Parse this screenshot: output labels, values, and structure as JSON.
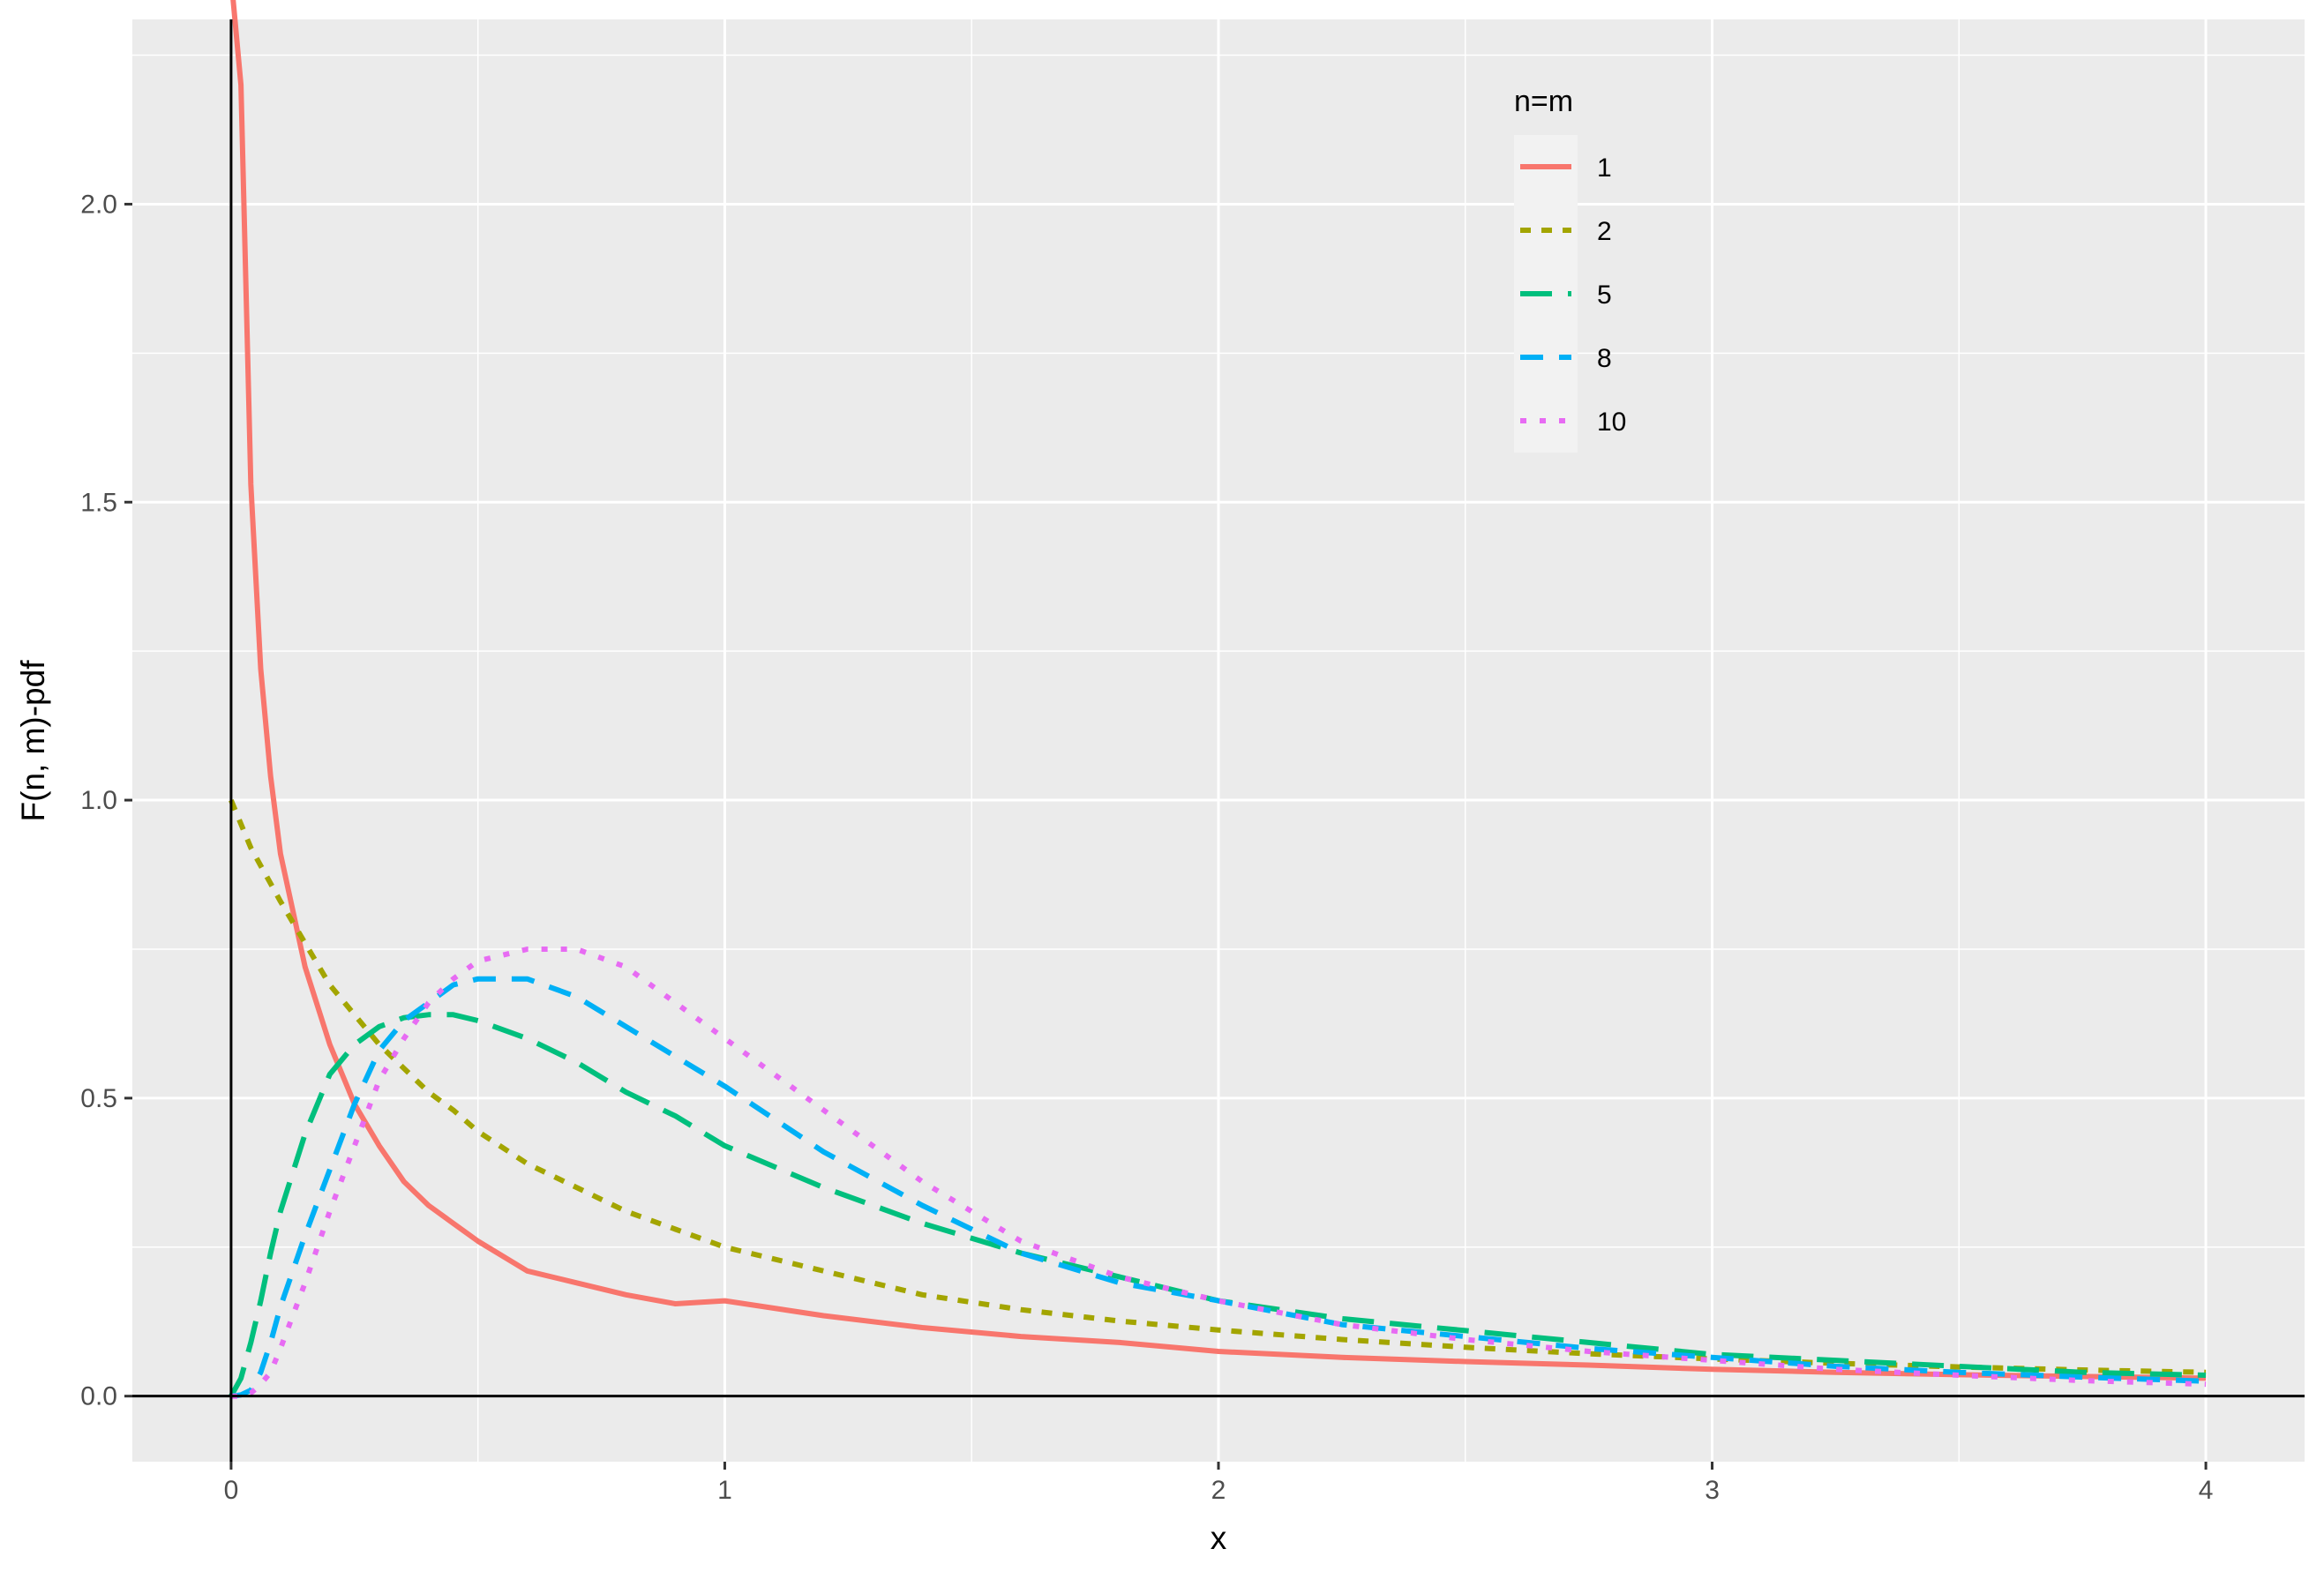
{
  "chart_data": {
    "type": "line",
    "title": "",
    "xlabel": "x",
    "ylabel": "F(n, m)-pdf",
    "xlim": [
      -0.2,
      4.2
    ],
    "ylim": [
      -0.11,
      2.31
    ],
    "x_ticks": [
      0,
      1,
      2,
      3,
      4
    ],
    "x_tick_labels": [
      "0",
      "1",
      "2",
      "3",
      "4"
    ],
    "y_ticks": [
      0,
      0.5,
      1,
      1.5,
      2
    ],
    "y_tick_labels": [
      "0.0",
      "0.5",
      "1.0",
      "1.5",
      "2.0"
    ],
    "grid": true,
    "legend": {
      "title": "n=m",
      "position": "top-right"
    },
    "x": [
      0,
      0.02,
      0.04,
      0.06,
      0.08,
      0.1,
      0.15,
      0.2,
      0.25,
      0.3,
      0.35,
      0.4,
      0.45,
      0.5,
      0.6,
      0.7,
      0.8,
      0.9,
      1,
      1.2,
      1.4,
      1.6,
      1.8,
      2,
      2.25,
      2.5,
      2.75,
      3,
      3.25,
      3.5,
      3.75,
      4
    ],
    "series": [
      {
        "name": "1",
        "color": "#F8766D",
        "dash": "solid",
        "values": [
          2.38,
          2.2,
          1.53,
          1.22,
          1.04,
          0.91,
          0.72,
          0.59,
          0.49,
          0.42,
          0.36,
          0.32,
          0.29,
          0.26,
          0.21,
          0.19,
          0.17,
          0.155,
          0.16,
          0.135,
          0.115,
          0.1,
          0.09,
          0.075,
          0.065,
          0.058,
          0.052,
          0.045,
          0.04,
          0.036,
          0.033,
          0.03
        ]
      },
      {
        "name": "2",
        "color": "#A3A500",
        "dash": "short",
        "values": [
          1.0,
          0.96,
          0.92,
          0.89,
          0.86,
          0.83,
          0.76,
          0.69,
          0.64,
          0.59,
          0.55,
          0.51,
          0.48,
          0.444,
          0.39,
          0.35,
          0.31,
          0.28,
          0.25,
          0.21,
          0.17,
          0.145,
          0.126,
          0.111,
          0.095,
          0.082,
          0.071,
          0.0625,
          0.055,
          0.049,
          0.044,
          0.04
        ]
      },
      {
        "name": "5",
        "color": "#00BF7D",
        "dash": "long",
        "values": [
          0,
          0.03,
          0.09,
          0.16,
          0.24,
          0.31,
          0.44,
          0.54,
          0.59,
          0.62,
          0.635,
          0.64,
          0.64,
          0.63,
          0.6,
          0.56,
          0.51,
          0.47,
          0.42,
          0.35,
          0.29,
          0.24,
          0.2,
          0.16,
          0.13,
          0.11,
          0.09,
          0.07,
          0.06,
          0.05,
          0.04,
          0.035
        ]
      },
      {
        "name": "8",
        "color": "#00B0F6",
        "dash": "medium",
        "values": [
          0,
          0.002,
          0.01,
          0.04,
          0.09,
          0.15,
          0.27,
          0.38,
          0.49,
          0.58,
          0.63,
          0.66,
          0.69,
          0.7,
          0.7,
          0.67,
          0.62,
          0.57,
          0.52,
          0.41,
          0.32,
          0.24,
          0.19,
          0.16,
          0.12,
          0.1,
          0.08,
          0.065,
          0.05,
          0.04,
          0.032,
          0.025
        ]
      },
      {
        "name": "10",
        "color": "#E76BF3",
        "dash": "dotted",
        "values": [
          0,
          0.0,
          0.005,
          0.02,
          0.04,
          0.08,
          0.19,
          0.31,
          0.42,
          0.53,
          0.6,
          0.66,
          0.7,
          0.73,
          0.75,
          0.75,
          0.72,
          0.66,
          0.6,
          0.48,
          0.36,
          0.26,
          0.2,
          0.16,
          0.12,
          0.095,
          0.075,
          0.06,
          0.045,
          0.035,
          0.026,
          0.02
        ]
      }
    ]
  }
}
